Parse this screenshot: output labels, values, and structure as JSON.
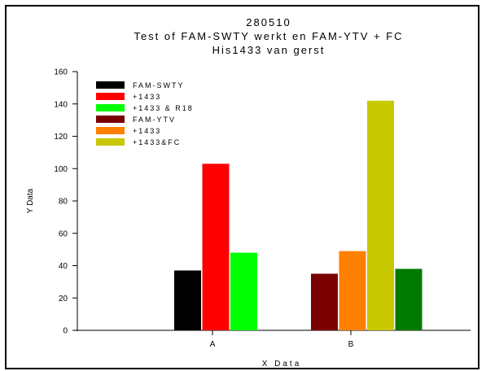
{
  "chart_data": {
    "type": "bar",
    "title_lines": [
      "280510",
      "Test of FAM-SWTY werkt en FAM-YTV + FC",
      "His1433 van gerst"
    ],
    "xlabel": "X Data",
    "ylabel": "Y Data",
    "ylim": [
      0,
      160
    ],
    "yticks": [
      0,
      20,
      40,
      60,
      80,
      100,
      120,
      140,
      160
    ],
    "categories": [
      "A",
      "B"
    ],
    "groups": [
      {
        "category": "A",
        "bars": [
          {
            "series": "FAM-SWTY",
            "value": 37,
            "color": "#000000"
          },
          {
            "series": "+1433",
            "value": 103,
            "color": "#ff0000"
          },
          {
            "series": "+1433 & R18",
            "value": 48,
            "color": "#00ff00"
          }
        ]
      },
      {
        "category": "B",
        "bars": [
          {
            "series": "FAM-YTV",
            "value": 35,
            "color": "#7a0000"
          },
          {
            "series": "+1433",
            "value": 49,
            "color": "#ff8000"
          },
          {
            "series": "+1433&FC",
            "value": 142,
            "color": "#c8c800"
          },
          {
            "series": "",
            "value": 38,
            "color": "#007a00"
          }
        ]
      }
    ],
    "legend": [
      {
        "label": "FAM-SWTY",
        "color": "#000000"
      },
      {
        "label": "+1433",
        "color": "#ff0000"
      },
      {
        "label": "+1433 & R18",
        "color": "#00ff00"
      },
      {
        "label": "FAM-YTV",
        "color": "#7a0000"
      },
      {
        "label": "+1433",
        "color": "#ff8000"
      },
      {
        "label": "+1433&FC",
        "color": "#c8c800"
      }
    ],
    "legend_position": "top-left",
    "grid": false
  }
}
